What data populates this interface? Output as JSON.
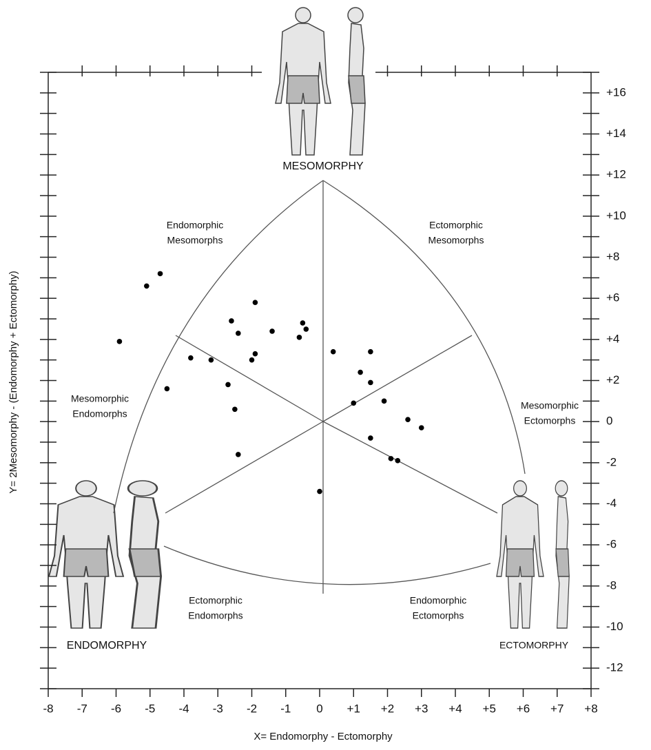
{
  "chart_data": {
    "type": "scatter",
    "x_label": "X= Endomorphy - Ectomorphy",
    "y_label": "Y= 2Mesomorphy - (Endomorphy + Ectomorphy)",
    "figure_labels": [
      "MESOMORPHY",
      "ENDOMORPHY",
      "ECTOMORPHY"
    ],
    "annotations": [
      [
        "Endomorphic",
        "Mesomorphs"
      ],
      [
        "Ectomorphic",
        "Mesomorphs"
      ],
      [
        "Mesomorphic",
        "Endomorphs"
      ],
      [
        "Mesomorphic",
        "Ectomorphs"
      ],
      [
        "Ectomorphic",
        "Endomorphs"
      ],
      [
        "Endomorphic",
        "Ectomorphs"
      ]
    ],
    "xlim": [
      -8,
      8
    ],
    "ylim": [
      -13,
      17
    ],
    "xticks": [
      -8,
      -7,
      -6,
      -5,
      -4,
      -3,
      -2,
      -1,
      0,
      {
        "value": 1,
        "label": "+1"
      },
      {
        "value": 2,
        "label": "+2"
      },
      {
        "value": 3,
        "label": "+3"
      },
      {
        "value": 4,
        "label": "+4"
      },
      {
        "value": 5,
        "label": "+5"
      },
      {
        "value": 6,
        "label": "+6"
      },
      {
        "value": 7,
        "label": "+7"
      },
      {
        "value": 8,
        "label": "+8"
      }
    ],
    "yticks": [
      {
        "value": 16,
        "label": "+16"
      },
      {
        "value": 14,
        "label": "+14"
      },
      {
        "value": 12,
        "label": "+12"
      },
      {
        "value": 10,
        "label": "+10"
      },
      {
        "value": 8,
        "label": "+8"
      },
      {
        "value": 6,
        "label": "+6"
      },
      {
        "value": 4,
        "label": "+4"
      },
      {
        "value": 2,
        "label": "+2"
      },
      0,
      -2,
      -4,
      -6,
      -8,
      -10,
      -12
    ],
    "yminorticks": [
      17,
      15,
      13,
      11,
      9,
      7,
      5,
      3,
      1,
      -1,
      -3,
      -5,
      -7,
      -9,
      -11,
      -13
    ],
    "color": "#000000",
    "x": [
      -4.7,
      -5.1,
      -5.9,
      -4.5,
      -3.8,
      -3.2,
      -2.6,
      -2.4,
      -1.9,
      -1.4,
      -1.9,
      -2.0,
      -2.7,
      -2.5,
      -2.4,
      -0.5,
      -0.4,
      -0.6,
      0.4,
      1.2,
      1.5,
      1.5,
      1.0,
      1.9,
      2.6,
      3.0,
      1.5,
      2.1,
      2.3,
      0.0
    ],
    "y": [
      7.2,
      6.6,
      3.9,
      1.6,
      3.1,
      3.0,
      4.9,
      4.3,
      5.8,
      4.4,
      3.3,
      3.0,
      1.8,
      0.6,
      -1.6,
      4.8,
      4.5,
      4.1,
      3.4,
      2.4,
      3.4,
      1.9,
      0.9,
      1.0,
      0.1,
      -0.3,
      -0.8,
      -1.8,
      -1.9,
      -3.4
    ]
  }
}
